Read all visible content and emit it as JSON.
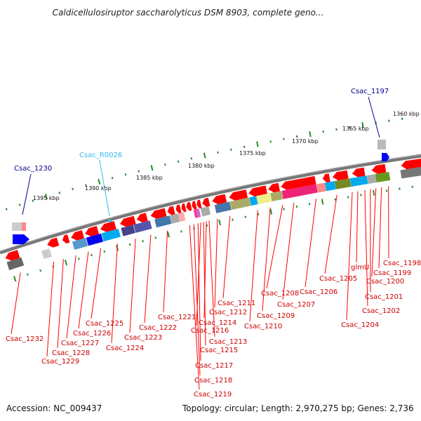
{
  "title": "Caldicellulosiruptor saccharolyticus DSM 8903, complete geno...",
  "footer": {
    "accession": "Accession: NC_009437",
    "topology": "Topology: circular; Length: 2,970,275 bp; Genes: 2,736"
  },
  "colors": {
    "forward": "#ff0000",
    "reverse": "#0000ff",
    "rna": "#33ccff",
    "backbone": "#888888",
    "tick": "#228822",
    "label_red": "#cc0000",
    "label_blue": "#00008b"
  },
  "scale": {
    "unit": "kbp",
    "major_ticks": [
      "1360 kbp",
      "1365 kbp",
      "1370 kbp",
      "1375 kbp",
      "1380 kbp",
      "1385 kbp",
      "1390 kbp",
      "1395 kbp"
    ]
  },
  "top_labels": [
    {
      "id": "Csac_1197",
      "color_key": "label_blue"
    },
    {
      "id": "Csac_R0026",
      "color_key": "rna"
    },
    {
      "id": "Csac_1230",
      "color_key": "label_blue"
    }
  ],
  "bottom_labels": [
    "Csac_1198",
    "Csac_1199",
    "Csac_1200",
    "Csac_1201",
    "Csac_1202",
    "glmU",
    "Csac_1204",
    "Csac_1205",
    "Csac_1206",
    "Csac_1207",
    "Csac_1208",
    "Csac_1209",
    "Csac_1210",
    "Csac_1211",
    "Csac_1212",
    "Csac_1213",
    "Csac_1214",
    "Csac_1215",
    "Csac_1216",
    "Csac_1217",
    "Csac_1218",
    "Csac_1219",
    "Csac_1221",
    "Csac_1222",
    "Csac_1223",
    "Csac_1224",
    "Csac_1225",
    "Csac_1226",
    "Csac_1227",
    "Csac_1228",
    "Csac_1229",
    "Csac_1232"
  ]
}
